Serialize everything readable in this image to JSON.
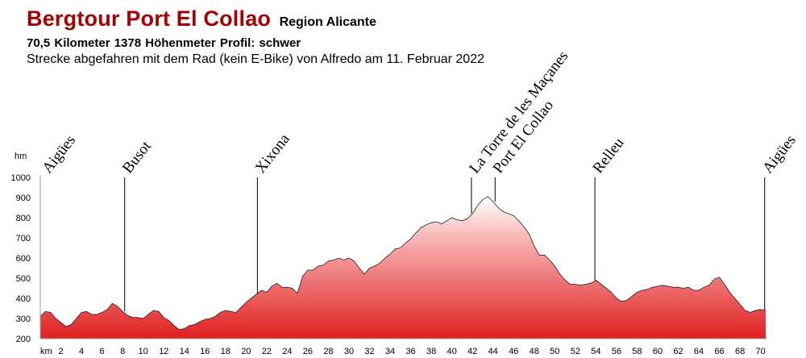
{
  "header": {
    "title": "Bergtour Port El Collao",
    "region": "Region Alicante",
    "stats": "70,5 Kilometer  1378 Höhenmeter  Profil: schwer",
    "subtitle": "Strecke abgefahren mit dem Rad (kein E-Bike) von Alfredo am 11. Februar 2022"
  },
  "chart_data": {
    "type": "area",
    "title": "Bergtour Port El Collao",
    "ylabel": "hm",
    "xlabel": "km",
    "xlim": [
      0,
      70.5
    ],
    "ylim": [
      200,
      1000
    ],
    "xticks": [
      2,
      4,
      6,
      8,
      10,
      12,
      14,
      16,
      18,
      20,
      22,
      24,
      26,
      28,
      30,
      32,
      34,
      36,
      38,
      40,
      42,
      44,
      46,
      48,
      50,
      52,
      54,
      56,
      58,
      60,
      62,
      64,
      66,
      68,
      70
    ],
    "yticks": [
      200,
      300,
      400,
      500,
      600,
      700,
      800,
      900,
      1000
    ],
    "grid": false,
    "colors": {
      "top": "#ffffff",
      "bottom": "#e02020",
      "outline": "#222222"
    },
    "series": [
      {
        "x": [
          0,
          0.5,
          1,
          1.5,
          2,
          2.5,
          3,
          3.5,
          4,
          4.5,
          5,
          5.5,
          6,
          6.5,
          7,
          7.5,
          8,
          8.5,
          9,
          9.5,
          10,
          10.5,
          11,
          11.5,
          12,
          12.5,
          13,
          13.5,
          14,
          14.5,
          15,
          15.5,
          16,
          16.5,
          17,
          17.5,
          18,
          18.5,
          19,
          19.5,
          20,
          20.5,
          21,
          21.5,
          22,
          22.5,
          23,
          23.5,
          24,
          24.5,
          25,
          25.5,
          26,
          26.5,
          27,
          27.5,
          28,
          28.5,
          29,
          29.5,
          30,
          30.5,
          31,
          31.5,
          32,
          32.5,
          33,
          33.5,
          34,
          34.5,
          35,
          35.5,
          36,
          36.5,
          37,
          37.5,
          38,
          38.5,
          39,
          39.5,
          40,
          40.5,
          41,
          41.5,
          42,
          42.5,
          43,
          43.5,
          44,
          44.5,
          45,
          45.5,
          46,
          46.5,
          47,
          47.5,
          48,
          48.5,
          49,
          49.5,
          50,
          50.5,
          51,
          51.5,
          52,
          52.5,
          53,
          53.5,
          54,
          54.5,
          55,
          55.5,
          56,
          56.5,
          57,
          57.5,
          58,
          58.5,
          59,
          59.5,
          60,
          60.5,
          61,
          61.5,
          62,
          62.5,
          63,
          63.5,
          64,
          64.5,
          65,
          65.5,
          66,
          66.5,
          67,
          67.5,
          68,
          68.5,
          69,
          69.5,
          70,
          70.5
        ],
        "y": [
          310,
          335,
          330,
          300,
          280,
          260,
          270,
          300,
          330,
          335,
          320,
          320,
          330,
          345,
          375,
          360,
          335,
          315,
          305,
          305,
          300,
          320,
          340,
          335,
          305,
          290,
          265,
          245,
          250,
          265,
          270,
          285,
          295,
          300,
          310,
          330,
          340,
          335,
          330,
          355,
          380,
          400,
          420,
          440,
          430,
          460,
          475,
          455,
          455,
          450,
          425,
          510,
          540,
          540,
          560,
          565,
          585,
          590,
          600,
          590,
          600,
          585,
          550,
          520,
          550,
          560,
          575,
          600,
          620,
          645,
          650,
          675,
          695,
          725,
          750,
          765,
          775,
          780,
          770,
          785,
          800,
          790,
          785,
          795,
          820,
          860,
          890,
          905,
          880,
          850,
          830,
          820,
          810,
          785,
          755,
          720,
          660,
          615,
          615,
          590,
          560,
          520,
          490,
          470,
          470,
          465,
          470,
          475,
          490,
          470,
          450,
          430,
          400,
          385,
          390,
          410,
          430,
          440,
          445,
          455,
          460,
          465,
          460,
          455,
          455,
          450,
          455,
          440,
          440,
          455,
          465,
          495,
          505,
          470,
          430,
          400,
          370,
          340,
          330,
          340,
          345,
          340
        ]
      }
    ],
    "annotations": [
      {
        "label": "Aigües",
        "x": 0.4,
        "line": false
      },
      {
        "label": "Busot",
        "x": 8.2,
        "line": true
      },
      {
        "label": "Xixona",
        "x": 21.1,
        "line": true
      },
      {
        "label": "La Torre de les Maçanes",
        "x": 41.9,
        "line": true
      },
      {
        "label": "Port El Collao",
        "x": 44.2,
        "line": true
      },
      {
        "label": "Relleu",
        "x": 53.9,
        "line": true
      },
      {
        "label": "Aigües",
        "x": 70.4,
        "line": true
      }
    ]
  }
}
